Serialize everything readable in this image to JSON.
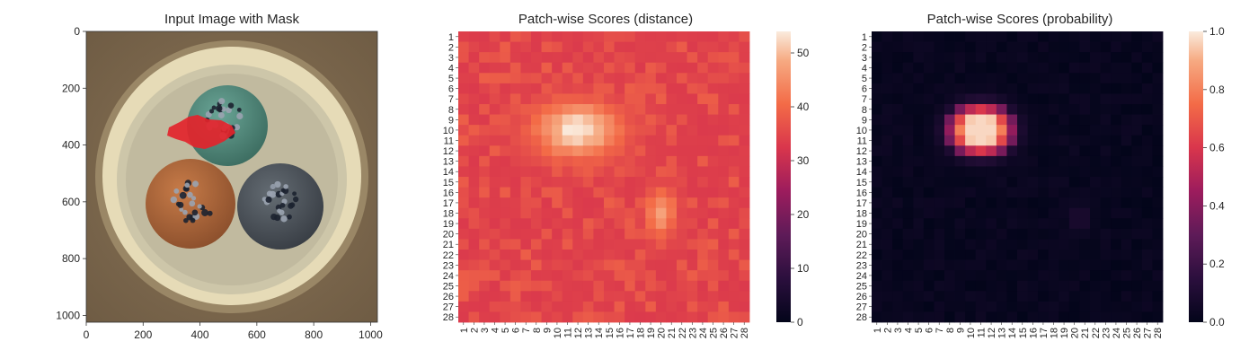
{
  "chart_data": [
    {
      "type": "image",
      "title": "Input Image with Mask",
      "xlim": [
        0,
        1024
      ],
      "ylim": [
        1024,
        0
      ],
      "xticks": [
        "0",
        "200",
        "400",
        "600",
        "800",
        "1000"
      ],
      "xtick_values": [
        0,
        200,
        400,
        600,
        800,
        1000
      ],
      "yticks": [
        "0",
        "200",
        "400",
        "600",
        "800",
        "1000"
      ],
      "ytick_values": [
        0,
        200,
        400,
        600,
        800,
        1000
      ],
      "mask_color": "#e3242b",
      "scene_colors": {
        "background": "#8b7355",
        "outer_ring": "#e7dcb8",
        "inner_fill": "#c9c3a9",
        "teal_wire": "#4f8a7a",
        "orange_wire": "#b0673a",
        "gray_wire": "#4c545c",
        "strands": "#1f2430"
      }
    },
    {
      "type": "heatmap",
      "title": "Patch-wise Scores (distance)",
      "rows": 28,
      "cols": 28,
      "xticklabels": [
        "1",
        "2",
        "3",
        "4",
        "5",
        "6",
        "7",
        "8",
        "9",
        "10",
        "11",
        "12",
        "13",
        "14",
        "15",
        "16",
        "17",
        "18",
        "19",
        "20",
        "21",
        "22",
        "23",
        "24",
        "25",
        "26",
        "27",
        "28"
      ],
      "yticklabels": [
        "1",
        "2",
        "3",
        "4",
        "5",
        "6",
        "7",
        "8",
        "9",
        "10",
        "11",
        "12",
        "13",
        "14",
        "15",
        "16",
        "17",
        "18",
        "19",
        "20",
        "21",
        "22",
        "23",
        "24",
        "25",
        "26",
        "27",
        "28"
      ],
      "colorbar": {
        "min": 0,
        "max": 54,
        "ticks": [
          0,
          10,
          20,
          30,
          40,
          50
        ],
        "ticklabels": [
          "0",
          "10",
          "20",
          "30",
          "40",
          "50"
        ]
      },
      "colormap": "rocket",
      "base_value": 34,
      "hotspots": [
        {
          "row": 10,
          "col": 12,
          "peak": 54,
          "sigma_r": 1.8,
          "sigma_c": 2.8
        },
        {
          "row": 18,
          "col": 20,
          "peak": 47,
          "sigma_r": 1.5,
          "sigma_c": 1.0
        }
      ]
    },
    {
      "type": "heatmap",
      "title": "Patch-wise Scores (probability)",
      "rows": 28,
      "cols": 28,
      "xticklabels": [
        "1",
        "2",
        "3",
        "4",
        "5",
        "6",
        "7",
        "8",
        "9",
        "10",
        "11",
        "12",
        "13",
        "14",
        "15",
        "16",
        "17",
        "18",
        "19",
        "20",
        "21",
        "22",
        "23",
        "24",
        "25",
        "26",
        "27",
        "28"
      ],
      "yticklabels": [
        "1",
        "2",
        "3",
        "4",
        "5",
        "6",
        "7",
        "8",
        "9",
        "10",
        "11",
        "12",
        "13",
        "14",
        "15",
        "16",
        "17",
        "18",
        "19",
        "20",
        "21",
        "22",
        "23",
        "24",
        "25",
        "26",
        "27",
        "28"
      ],
      "colorbar": {
        "min": 0.0,
        "max": 1.0,
        "ticks": [
          0.0,
          0.2,
          0.4,
          0.6,
          0.8,
          1.0
        ],
        "ticklabels": [
          "0.0",
          "0.2",
          "0.4",
          "0.6",
          "0.8",
          "1.0"
        ]
      },
      "colormap": "rocket",
      "hotspots": [
        {
          "row": 10,
          "col": 11,
          "peak": 0.97,
          "sigma_r": 1.6,
          "sigma_c": 2.0
        }
      ]
    }
  ]
}
